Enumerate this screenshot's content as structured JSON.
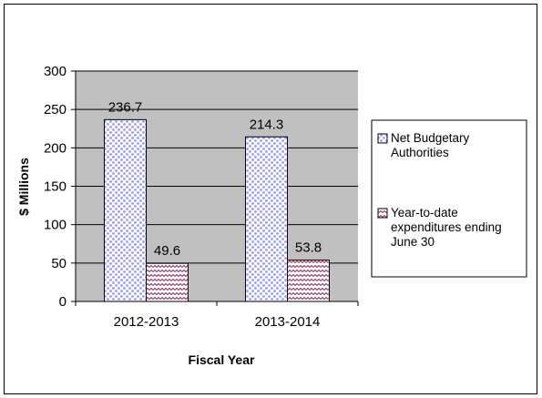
{
  "chart_data": {
    "type": "bar",
    "categories": [
      "2012-2013",
      "2013-2014"
    ],
    "series": [
      {
        "name": "Net Budgetary Authorities",
        "values": [
          236.7,
          214.3
        ],
        "color": "#9999ff"
      },
      {
        "name": "Year-to-date expenditures ending June 30",
        "values": [
          49.6,
          53.8
        ],
        "color": "#993366"
      }
    ],
    "data_labels": [
      [
        "236.7",
        "214.3"
      ],
      [
        "49.6",
        "53.8"
      ]
    ],
    "title": "",
    "xlabel": "Fiscal Year",
    "ylabel": "$ Millions",
    "ylim": [
      0,
      300
    ],
    "yticks": [
      0,
      50,
      100,
      150,
      200,
      250,
      300
    ],
    "grid": true,
    "legend_position": "right",
    "legend_lines": [
      [
        "Net Budgetary",
        "Authorities"
      ],
      [
        "Year-to-date",
        "expenditures ending",
        "June 30"
      ]
    ],
    "plot_background": "#c0c0c0"
  }
}
